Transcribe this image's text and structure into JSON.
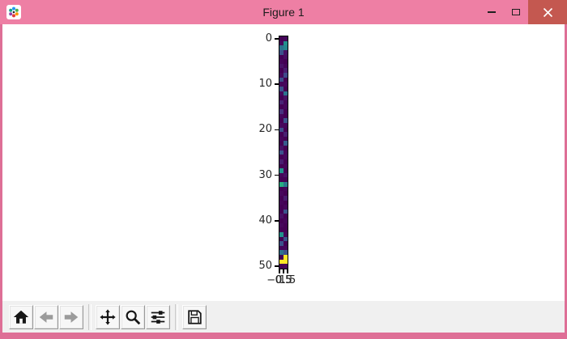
{
  "window": {
    "title": "Figure 1",
    "titlebar_color": "#ee7fa4",
    "frame_color": "#de6f96",
    "close_button_color": "#c45850",
    "icons": [
      "matplotlib-logo-icon",
      "minimize-icon",
      "maximize-icon",
      "close-icon"
    ]
  },
  "toolbar": {
    "background": "#f0f0f0",
    "buttons": [
      {
        "name": "home",
        "icon": "home-icon",
        "enabled": true
      },
      {
        "name": "back",
        "icon": "back-arrow-icon",
        "enabled": false
      },
      {
        "name": "forward",
        "icon": "forward-arrow-icon",
        "enabled": false
      },
      {
        "name": "pan",
        "icon": "pan-arrows-icon",
        "enabled": true
      },
      {
        "name": "zoom",
        "icon": "zoom-magnifier-icon",
        "enabled": true
      },
      {
        "name": "configure-subplots",
        "icon": "sliders-icon",
        "enabled": true
      },
      {
        "name": "save",
        "icon": "save-floppy-icon",
        "enabled": true
      }
    ]
  },
  "chart_data": {
    "type": "heatmap",
    "title": "",
    "colormap": "viridis",
    "shape": [
      51,
      2
    ],
    "x_range": [
      -0.5,
      1.5
    ],
    "y_range": [
      50.5,
      -0.5
    ],
    "grid": false,
    "x_ticks": [
      -0.5,
      0.5,
      1.5
    ],
    "x_tick_labels": [
      "−0.5",
      "0.5",
      "1.5"
    ],
    "y_ticks": [
      0,
      10,
      20,
      30,
      40,
      50
    ],
    "y_tick_labels": [
      "0",
      "10",
      "20",
      "30",
      "40",
      "50"
    ],
    "values": [
      [
        0.0,
        0.03
      ],
      [
        0.05,
        0.55
      ],
      [
        0.45,
        0.5
      ],
      [
        0.33,
        0.08
      ],
      [
        0.0,
        0.07
      ],
      [
        0.03,
        0.0
      ],
      [
        0.1,
        0.03
      ],
      [
        0.0,
        0.13
      ],
      [
        0.05,
        0.3
      ],
      [
        0.31,
        0.0
      ],
      [
        0.03,
        0.05
      ],
      [
        0.33,
        0.0
      ],
      [
        0.05,
        0.45
      ],
      [
        0.0,
        0.08
      ],
      [
        0.16,
        0.03
      ],
      [
        0.0,
        0.05
      ],
      [
        0.22,
        0.0
      ],
      [
        0.03,
        0.0
      ],
      [
        0.0,
        0.33
      ],
      [
        0.05,
        0.03
      ],
      [
        0.31,
        0.0
      ],
      [
        0.0,
        0.14
      ],
      [
        0.03,
        0.0
      ],
      [
        0.0,
        0.36
      ],
      [
        0.08,
        0.0
      ],
      [
        0.33,
        0.03
      ],
      [
        0.0,
        0.05
      ],
      [
        0.13,
        0.0
      ],
      [
        0.0,
        0.03
      ],
      [
        0.55,
        0.0
      ],
      [
        0.03,
        0.08
      ],
      [
        0.0,
        0.0
      ],
      [
        0.65,
        0.47
      ],
      [
        0.0,
        0.03
      ],
      [
        0.05,
        0.0
      ],
      [
        0.0,
        0.13
      ],
      [
        0.03,
        0.0
      ],
      [
        0.0,
        0.05
      ],
      [
        0.0,
        0.33
      ],
      [
        0.08,
        0.0
      ],
      [
        0.0,
        0.03
      ],
      [
        0.05,
        0.0
      ],
      [
        0.0,
        0.0
      ],
      [
        0.55,
        0.03
      ],
      [
        0.0,
        0.33
      ],
      [
        0.33,
        0.0
      ],
      [
        0.03,
        0.05
      ],
      [
        0.45,
        0.33
      ],
      [
        0.0,
        1.0
      ],
      [
        1.0,
        1.0
      ],
      [
        0.0,
        0.03
      ]
    ],
    "cell_colors": [
      [
        "#440154",
        "#45065a"
      ],
      [
        "#46085c",
        "#21918c"
      ],
      [
        "#2c728e",
        "#25858e"
      ],
      [
        "#3b528b",
        "#471164"
      ],
      [
        "#440154",
        "#470d60"
      ],
      [
        "#45065a",
        "#440154"
      ],
      [
        "#481467",
        "#45065a"
      ],
      [
        "#440154",
        "#481d6f"
      ],
      [
        "#46085c",
        "#3f4a8a"
      ],
      [
        "#3d4e8a",
        "#440154"
      ],
      [
        "#45065a",
        "#46085c"
      ],
      [
        "#3b528b",
        "#440154"
      ],
      [
        "#46085c",
        "#2c728e"
      ],
      [
        "#440154",
        "#471164"
      ],
      [
        "#482475",
        "#45065a"
      ],
      [
        "#440154",
        "#46085c"
      ],
      [
        "#46327e",
        "#440154"
      ],
      [
        "#45065a",
        "#440154"
      ],
      [
        "#440154",
        "#3b528b"
      ],
      [
        "#46085c",
        "#45065a"
      ],
      [
        "#3d4e8a",
        "#440154"
      ],
      [
        "#440154",
        "#482071"
      ],
      [
        "#45065a",
        "#440154"
      ],
      [
        "#440154",
        "#375a8c"
      ],
      [
        "#471164",
        "#440154"
      ],
      [
        "#3b528b",
        "#45065a"
      ],
      [
        "#440154",
        "#46085c"
      ],
      [
        "#481d6f",
        "#440154"
      ],
      [
        "#440154",
        "#45065a"
      ],
      [
        "#21918c",
        "#440154"
      ],
      [
        "#45065a",
        "#471164"
      ],
      [
        "#440154",
        "#440154"
      ],
      [
        "#27ad81",
        "#2a788e"
      ],
      [
        "#440154",
        "#45065a"
      ],
      [
        "#46085c",
        "#440154"
      ],
      [
        "#440154",
        "#481d6f"
      ],
      [
        "#45065a",
        "#440154"
      ],
      [
        "#440154",
        "#46085c"
      ],
      [
        "#440154",
        "#3b528b"
      ],
      [
        "#471164",
        "#440154"
      ],
      [
        "#440154",
        "#45065a"
      ],
      [
        "#46085c",
        "#440154"
      ],
      [
        "#440154",
        "#440154"
      ],
      [
        "#21918c",
        "#45065a"
      ],
      [
        "#440154",
        "#3b528b"
      ],
      [
        "#3b528b",
        "#440154"
      ],
      [
        "#45065a",
        "#46085c"
      ],
      [
        "#2c728e",
        "#3b528b"
      ],
      [
        "#440154",
        "#fde725"
      ],
      [
        "#fde725",
        "#fde725"
      ],
      [
        "#440154",
        "#45065a"
      ]
    ]
  }
}
